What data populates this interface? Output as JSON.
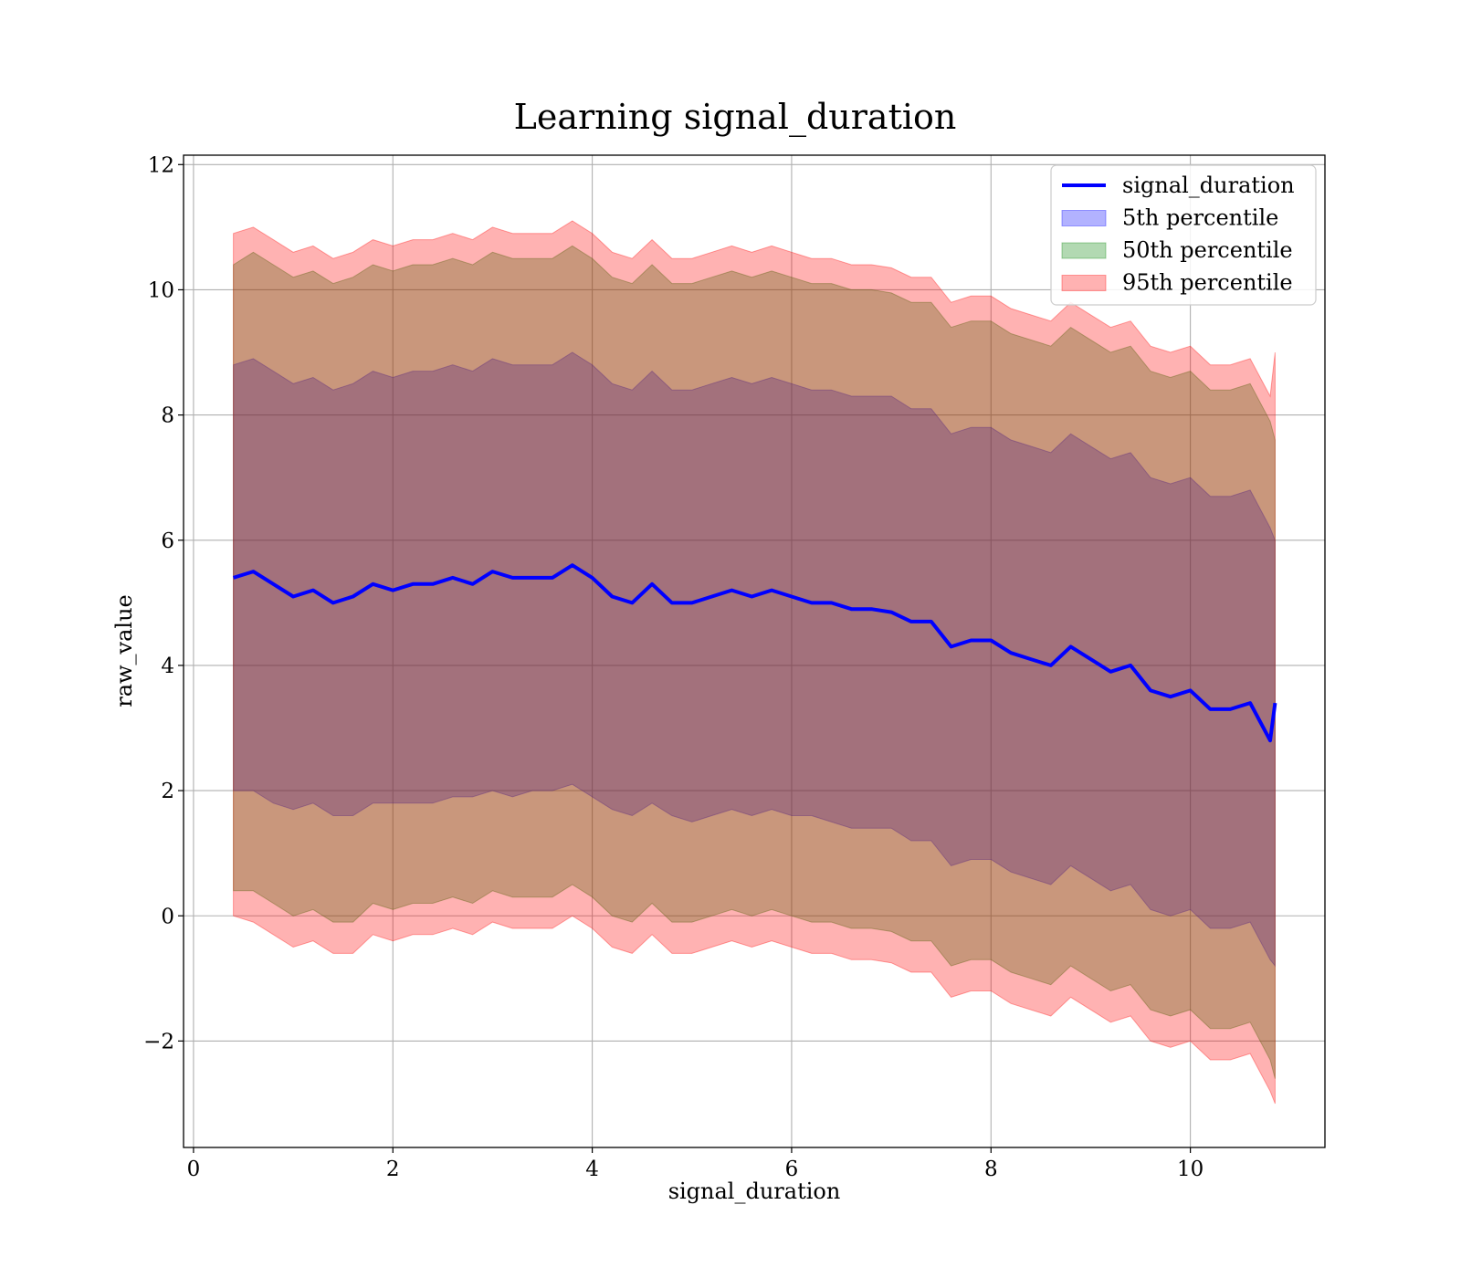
{
  "chart_data": {
    "type": "line",
    "title": "Learning signal_duration",
    "xlabel": "signal_duration",
    "ylabel": "raw_value",
    "xlim": [
      -0.1,
      11.35
    ],
    "ylim": [
      -3.7,
      12.15
    ],
    "x_ticks": [
      0,
      2,
      4,
      6,
      8,
      10
    ],
    "y_ticks": [
      -2,
      0,
      2,
      4,
      6,
      8,
      10,
      12
    ],
    "x_tick_labels": [
      "0",
      "2",
      "4",
      "6",
      "8",
      "10"
    ],
    "y_tick_labels": [
      "−2",
      "0",
      "2",
      "4",
      "6",
      "8",
      "10",
      "12"
    ],
    "grid": true,
    "legend_position": "top-right",
    "x": [
      0.4,
      0.6,
      0.8,
      1.0,
      1.2,
      1.4,
      1.6,
      1.8,
      2.0,
      2.2,
      2.4,
      2.6,
      2.8,
      3.0,
      3.2,
      3.4,
      3.6,
      3.8,
      4.0,
      4.2,
      4.4,
      4.6,
      4.8,
      5.0,
      5.2,
      5.4,
      5.6,
      5.8,
      6.0,
      6.2,
      6.4,
      6.6,
      6.8,
      7.0,
      7.2,
      7.4,
      7.6,
      7.8,
      8.0,
      8.2,
      8.4,
      8.6,
      8.8,
      9.0,
      9.2,
      9.4,
      9.6,
      9.8,
      10.0,
      10.2,
      10.4,
      10.6,
      10.8,
      10.85
    ],
    "series": [
      {
        "name": "signal_duration",
        "kind": "line",
        "color": "#0000ff",
        "values": [
          5.4,
          5.5,
          5.3,
          5.1,
          5.2,
          5.0,
          5.1,
          5.3,
          5.2,
          5.3,
          5.3,
          5.4,
          5.3,
          5.5,
          5.4,
          5.4,
          5.4,
          5.6,
          5.4,
          5.1,
          5.0,
          5.3,
          5.0,
          5.0,
          5.1,
          5.2,
          5.1,
          5.2,
          5.1,
          5.0,
          5.0,
          4.9,
          4.9,
          4.85,
          4.7,
          4.7,
          4.3,
          4.4,
          4.4,
          4.2,
          4.1,
          4.0,
          4.3,
          4.1,
          3.9,
          4.0,
          3.6,
          3.5,
          3.6,
          3.3,
          3.3,
          3.4,
          2.8,
          3.4
        ]
      },
      {
        "name": "5th percentile",
        "kind": "band",
        "color": "#0000ff",
        "opacity": 0.3,
        "lower": [
          2.0,
          2.0,
          1.8,
          1.7,
          1.8,
          1.6,
          1.6,
          1.8,
          1.8,
          1.8,
          1.8,
          1.9,
          1.9,
          2.0,
          1.9,
          2.0,
          2.0,
          2.1,
          1.9,
          1.7,
          1.6,
          1.8,
          1.6,
          1.5,
          1.6,
          1.7,
          1.6,
          1.7,
          1.6,
          1.6,
          1.5,
          1.4,
          1.4,
          1.4,
          1.2,
          1.2,
          0.8,
          0.9,
          0.9,
          0.7,
          0.6,
          0.5,
          0.8,
          0.6,
          0.4,
          0.5,
          0.1,
          0.0,
          0.1,
          -0.2,
          -0.2,
          -0.1,
          -0.7,
          -0.8
        ],
        "upper": [
          8.8,
          8.9,
          8.7,
          8.5,
          8.6,
          8.4,
          8.5,
          8.7,
          8.6,
          8.7,
          8.7,
          8.8,
          8.7,
          8.9,
          8.8,
          8.8,
          8.8,
          9.0,
          8.8,
          8.5,
          8.4,
          8.7,
          8.4,
          8.4,
          8.5,
          8.6,
          8.5,
          8.6,
          8.5,
          8.4,
          8.4,
          8.3,
          8.3,
          8.3,
          8.1,
          8.1,
          7.7,
          7.8,
          7.8,
          7.6,
          7.5,
          7.4,
          7.7,
          7.5,
          7.3,
          7.4,
          7.0,
          6.9,
          7.0,
          6.7,
          6.7,
          6.8,
          6.2,
          6.0
        ]
      },
      {
        "name": "50th percentile",
        "kind": "band",
        "color": "#008000",
        "opacity": 0.3,
        "lower": [
          0.4,
          0.4,
          0.2,
          0.0,
          0.1,
          -0.1,
          -0.1,
          0.2,
          0.1,
          0.2,
          0.2,
          0.3,
          0.2,
          0.4,
          0.3,
          0.3,
          0.3,
          0.5,
          0.3,
          0.0,
          -0.1,
          0.2,
          -0.1,
          -0.1,
          0.0,
          0.1,
          0.0,
          0.1,
          0.0,
          -0.1,
          -0.1,
          -0.2,
          -0.2,
          -0.25,
          -0.4,
          -0.4,
          -0.8,
          -0.7,
          -0.7,
          -0.9,
          -1.0,
          -1.1,
          -0.8,
          -1.0,
          -1.2,
          -1.1,
          -1.5,
          -1.6,
          -1.5,
          -1.8,
          -1.8,
          -1.7,
          -2.3,
          -2.6
        ],
        "upper": [
          10.4,
          10.6,
          10.4,
          10.2,
          10.3,
          10.1,
          10.2,
          10.4,
          10.3,
          10.4,
          10.4,
          10.5,
          10.4,
          10.6,
          10.5,
          10.5,
          10.5,
          10.7,
          10.5,
          10.2,
          10.1,
          10.4,
          10.1,
          10.1,
          10.2,
          10.3,
          10.2,
          10.3,
          10.2,
          10.1,
          10.1,
          10.0,
          10.0,
          9.95,
          9.8,
          9.8,
          9.4,
          9.5,
          9.5,
          9.3,
          9.2,
          9.1,
          9.4,
          9.2,
          9.0,
          9.1,
          8.7,
          8.6,
          8.7,
          8.4,
          8.4,
          8.5,
          7.9,
          7.6
        ]
      },
      {
        "name": "95th percentile",
        "kind": "band",
        "color": "#ff0000",
        "opacity": 0.3,
        "lower": [
          0.0,
          -0.1,
          -0.3,
          -0.5,
          -0.4,
          -0.6,
          -0.6,
          -0.3,
          -0.4,
          -0.3,
          -0.3,
          -0.2,
          -0.3,
          -0.1,
          -0.2,
          -0.2,
          -0.2,
          0.0,
          -0.2,
          -0.5,
          -0.6,
          -0.3,
          -0.6,
          -0.6,
          -0.5,
          -0.4,
          -0.5,
          -0.4,
          -0.5,
          -0.6,
          -0.6,
          -0.7,
          -0.7,
          -0.75,
          -0.9,
          -0.9,
          -1.3,
          -1.2,
          -1.2,
          -1.4,
          -1.5,
          -1.6,
          -1.3,
          -1.5,
          -1.7,
          -1.6,
          -2.0,
          -2.1,
          -2.0,
          -2.3,
          -2.3,
          -2.2,
          -2.8,
          -3.0
        ],
        "upper": [
          10.9,
          11.0,
          10.8,
          10.6,
          10.7,
          10.5,
          10.6,
          10.8,
          10.7,
          10.8,
          10.8,
          10.9,
          10.8,
          11.0,
          10.9,
          10.9,
          10.9,
          11.1,
          10.9,
          10.6,
          10.5,
          10.8,
          10.5,
          10.5,
          10.6,
          10.7,
          10.6,
          10.7,
          10.6,
          10.5,
          10.5,
          10.4,
          10.4,
          10.35,
          10.2,
          10.2,
          9.8,
          9.9,
          9.9,
          9.7,
          9.6,
          9.5,
          9.8,
          9.6,
          9.4,
          9.5,
          9.1,
          9.0,
          9.1,
          8.8,
          8.8,
          8.9,
          8.3,
          9.0
        ]
      }
    ],
    "legend": [
      {
        "label": "signal_duration",
        "kind": "line",
        "color": "#0000ff"
      },
      {
        "label": "5th percentile",
        "kind": "patch",
        "color": "#0000ff"
      },
      {
        "label": "50th percentile",
        "kind": "patch",
        "color": "#008000"
      },
      {
        "label": "95th percentile",
        "kind": "patch",
        "color": "#ff0000"
      }
    ]
  }
}
